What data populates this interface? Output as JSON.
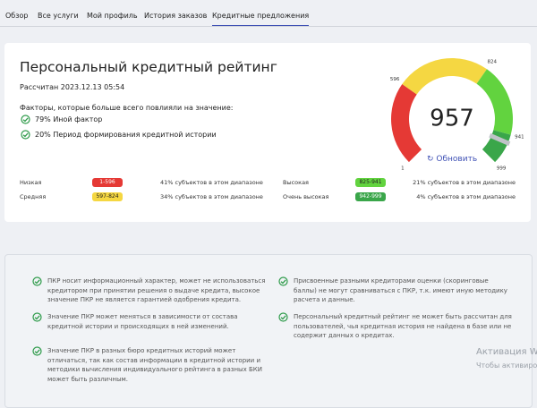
{
  "nav": {
    "tabs": [
      "Обзор",
      "Все услуги",
      "Мой профиль",
      "История заказов",
      "Кредитные предложения"
    ],
    "active": 4
  },
  "rating": {
    "title": "Персональный кредитный рейтинг",
    "calculated": "Рассчитан 2023.12.13 05:54",
    "factors_title": "Факторы, которые больше всего повлияли на значение:",
    "factors": [
      "79% Иной фактор",
      "20% Период формирования кредитной истории"
    ],
    "score": 957,
    "refresh": "Обновить",
    "gauge_ticks": [
      1,
      596,
      824,
      941,
      999
    ]
  },
  "ranges": [
    {
      "name": "Низкая",
      "range": "1-596",
      "share": "41% субъектов в этом диапазоне",
      "color": "#e53935"
    },
    {
      "name": "Средняя",
      "range": "597-824",
      "share": "34% субъектов в этом диапазоне",
      "color": "#f5d742"
    },
    {
      "name": "Высокая",
      "range": "825-941",
      "share": "21% субъектов в этом диапазоне",
      "color": "#62d33f"
    },
    {
      "name": "Очень высокая",
      "range": "942-999",
      "share": "4% субъектов в этом диапазоне",
      "color": "#3aa64a"
    }
  ],
  "notes": [
    "ПКР носит информационный характер, может не использоваться кредитором при принятии решения о выдаче кредита, высокое значение ПКР не является гарантией одобрения кредита.",
    "Значение ПКР может меняться в зависимости от состава кредитной истории и происходящих в ней изменений.",
    "Значение ПКР в разных бюро кредитных историй может отличаться, так как состав информации в кредитной истории и методики вычисления индивидуального рейтинга в разных БКИ может быть различным.",
    "Присвоенные разными кредиторами оценки (скоринговые баллы) не могут сравниваться с ПКР, т.к. имеют иную методику расчета и данные.",
    "Персональный кредитный рейтинг не может быть рассчитан для пользователей, чья кредитная история не найдена в базе или не содержит данных о кредитах."
  ],
  "watermark": [
    "Активация Wi",
    "Чтобы активирова"
  ]
}
